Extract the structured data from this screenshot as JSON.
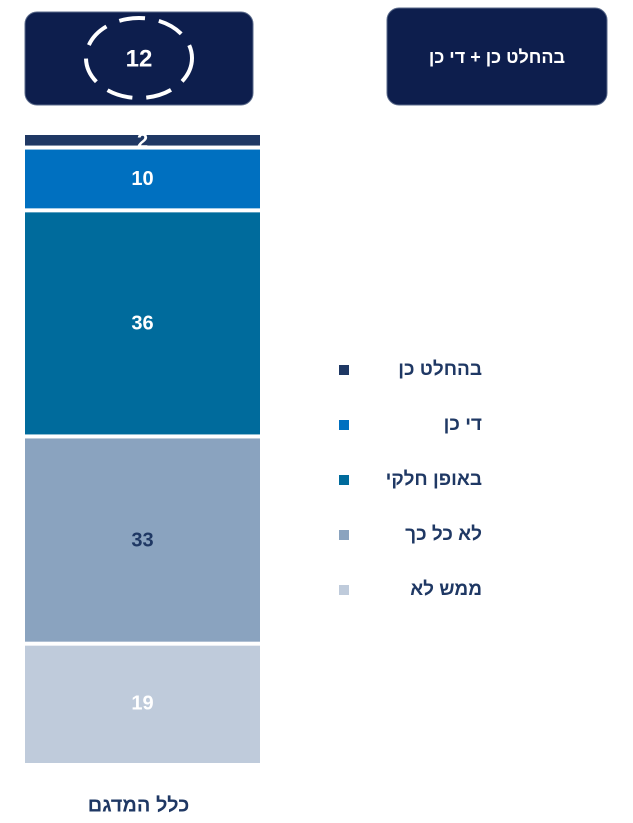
{
  "chart_data": {
    "type": "stacked_bar",
    "categories": [
      "כלל המדגם"
    ],
    "series": [
      {
        "name": "בהחלט כן",
        "color": "#1f3864",
        "label_color": "#ffffff",
        "values": [
          2
        ]
      },
      {
        "name": "די כן",
        "color": "#0070c0",
        "label_color": "#ffffff",
        "values": [
          10
        ]
      },
      {
        "name": "באופן חלקי",
        "color": "#006b9c",
        "label_color": "#ffffff",
        "values": [
          36
        ]
      },
      {
        "name": "לא כל כך",
        "color": "#8aa3bf",
        "label_color": "#1f3864",
        "values": [
          33
        ]
      },
      {
        "name": "ממש לא",
        "color": "#bfcbdb",
        "label_color": "#ffffff",
        "values": [
          19
        ]
      }
    ],
    "summary": {
      "label": "בהחלט כן + די כן",
      "value": 12,
      "color": "#0d1e4d"
    }
  }
}
